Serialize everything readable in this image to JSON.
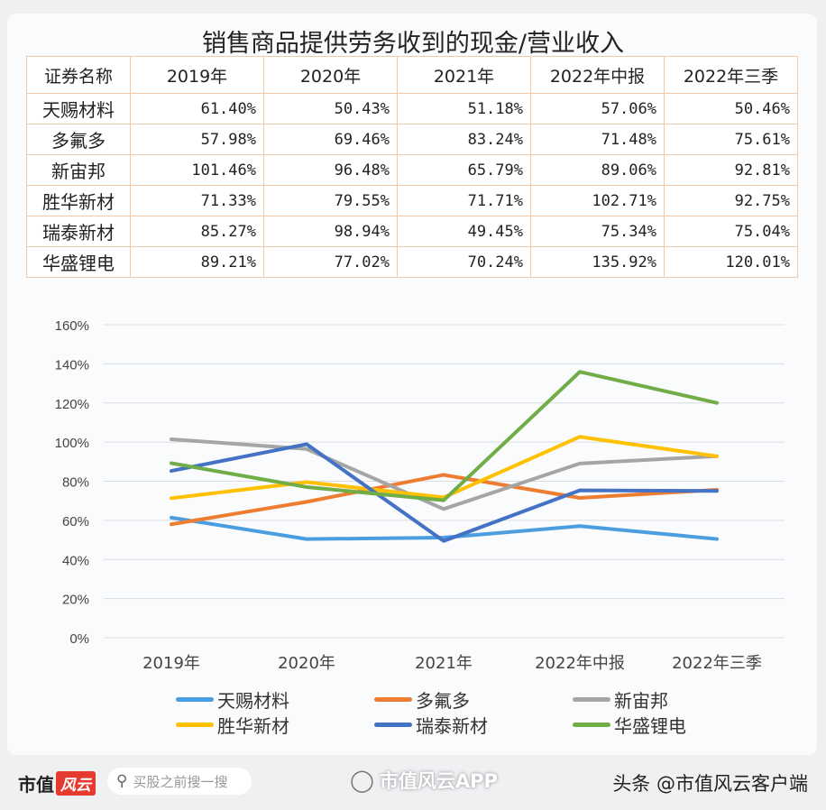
{
  "title": "销售商品提供劳务收到的现金/营业收入",
  "table": {
    "headers": [
      "证券名称",
      "2019年",
      "2020年",
      "2021年",
      "2022年中报",
      "2022年三季"
    ],
    "rows": [
      {
        "name": "天赐材料",
        "values": [
          "61.40%",
          "50.43%",
          "51.18%",
          "57.06%",
          "50.46%"
        ]
      },
      {
        "name": "多氟多",
        "values": [
          "57.98%",
          "69.46%",
          "83.24%",
          "71.48%",
          "75.61%"
        ]
      },
      {
        "name": "新宙邦",
        "values": [
          "101.46%",
          "96.48%",
          "65.79%",
          "89.06%",
          "92.81%"
        ]
      },
      {
        "name": "胜华新材",
        "values": [
          "71.33%",
          "79.55%",
          "71.71%",
          "102.71%",
          "92.75%"
        ]
      },
      {
        "name": "瑞泰新材",
        "values": [
          "85.27%",
          "98.94%",
          "49.45%",
          "75.34%",
          "75.04%"
        ]
      },
      {
        "name": "华盛锂电",
        "values": [
          "89.21%",
          "77.02%",
          "70.24%",
          "135.92%",
          "120.01%"
        ]
      }
    ]
  },
  "chart_data": {
    "type": "line",
    "title": "销售商品提供劳务收到的现金/营业收入",
    "categories": [
      "2019年",
      "2020年",
      "2021年",
      "2022年中报",
      "2022年三季"
    ],
    "xlabel": "",
    "ylabel": "",
    "ylim": [
      0,
      160
    ],
    "yticks": [
      "0%",
      "20%",
      "40%",
      "60%",
      "80%",
      "100%",
      "120%",
      "140%",
      "160%"
    ],
    "grid": true,
    "legend_position": "bottom",
    "series": [
      {
        "name": "天赐材料",
        "color": "#4a9ee0",
        "values": [
          61.4,
          50.43,
          51.18,
          57.06,
          50.46
        ]
      },
      {
        "name": "多氟多",
        "color": "#ed7d31",
        "values": [
          57.98,
          69.46,
          83.24,
          71.48,
          75.61
        ]
      },
      {
        "name": "新宙邦",
        "color": "#a5a5a5",
        "values": [
          101.46,
          96.48,
          65.79,
          89.06,
          92.81
        ]
      },
      {
        "name": "胜华新材",
        "color": "#ffc000",
        "values": [
          71.33,
          79.55,
          71.71,
          102.71,
          92.75
        ]
      },
      {
        "name": "瑞泰新材",
        "color": "#4472c4",
        "values": [
          85.27,
          98.94,
          49.45,
          75.34,
          75.04
        ]
      },
      {
        "name": "华盛锂电",
        "color": "#70ad47",
        "values": [
          89.21,
          77.02,
          70.24,
          135.92,
          120.01
        ]
      }
    ]
  },
  "footer": {
    "logo_text": "市值",
    "logo_badge": "风云",
    "search_placeholder": "买股之前搜一搜",
    "app_watermark": "市值风云APP",
    "attribution": "头条 @市值风云客户端"
  }
}
